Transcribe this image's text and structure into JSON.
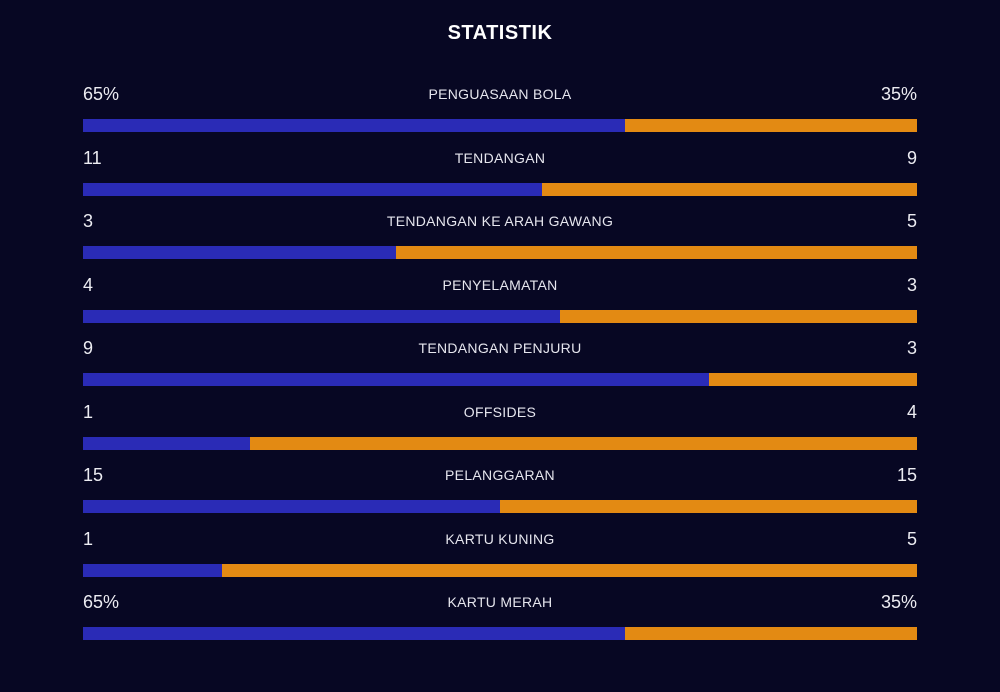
{
  "title": "STATISTIK",
  "colors": {
    "background": "#070723",
    "home": "#2a2bb6",
    "away": "#e38a13"
  },
  "stats": [
    {
      "label": "PENGUASAAN BOLA",
      "home": "65%",
      "away": "35%",
      "home_share": 0.65
    },
    {
      "label": "TENDANGAN",
      "home": "11",
      "away": "9",
      "home_share": 0.55
    },
    {
      "label": "TENDANGAN KE ARAH GAWANG",
      "home": "3",
      "away": "5",
      "home_share": 0.375
    },
    {
      "label": "PENYELAMATAN",
      "home": "4",
      "away": "3",
      "home_share": 0.5714
    },
    {
      "label": "TENDANGAN PENJURU",
      "home": "9",
      "away": "3",
      "home_share": 0.75
    },
    {
      "label": "OFFSIDES",
      "home": "1",
      "away": "4",
      "home_share": 0.2
    },
    {
      "label": "PELANGGARAN",
      "home": "15",
      "away": "15",
      "home_share": 0.5
    },
    {
      "label": "KARTU KUNING",
      "home": "1",
      "away": "5",
      "home_share": 0.1667
    },
    {
      "label": "KARTU MERAH",
      "home": "65%",
      "away": "35%",
      "home_share": 0.65
    }
  ]
}
